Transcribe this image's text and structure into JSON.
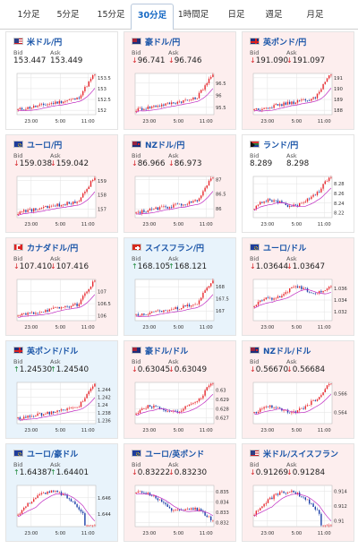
{
  "tabs": [
    {
      "label": "1分足",
      "active": false
    },
    {
      "label": "5分足",
      "active": false
    },
    {
      "label": "15分足",
      "active": false
    },
    {
      "label": "30分足",
      "active": true
    },
    {
      "label": "1時間足",
      "active": false
    },
    {
      "label": "日足",
      "active": false
    },
    {
      "label": "週足",
      "active": false
    },
    {
      "label": "月足",
      "active": false
    }
  ],
  "labels": {
    "bid": "Bid",
    "ask": "Ask"
  },
  "xticks": [
    "23:00",
    "5:00",
    "11:00"
  ],
  "colors": {
    "bull": "#e8282e",
    "bear": "#1b3fa8",
    "ma": "#c02cc2",
    "grid": "#e2e2e2",
    "down_bg": "#fdeeee",
    "up_bg": "#e8f3fb",
    "link": "#1a55a8"
  },
  "pairs": [
    {
      "name": "米ドル/円",
      "flag": "us",
      "trend": "flat",
      "arrow": "",
      "bid": "153.447",
      "ask": "153.449",
      "yticks": [
        "153.5",
        "153",
        "152.5",
        "152"
      ],
      "ylim": [
        151.8,
        153.7
      ],
      "shape": "rise"
    },
    {
      "name": "豪ドル/円",
      "flag": "au",
      "trend": "down",
      "arrow": "↓",
      "bid": "96.741",
      "ask": "96.746",
      "yticks": [
        "96.5",
        "96",
        "95.5"
      ],
      "ylim": [
        95.2,
        96.9
      ],
      "shape": "rise"
    },
    {
      "name": "英ポンド/円",
      "flag": "gb",
      "trend": "down",
      "arrow": "↓",
      "bid": "191.090",
      "ask": "191.097",
      "yticks": [
        "191",
        "190",
        "189",
        "188"
      ],
      "ylim": [
        187.6,
        191.4
      ],
      "shape": "rise"
    },
    {
      "name": "ユーロ/円",
      "flag": "eu",
      "trend": "down",
      "arrow": "↓",
      "bid": "159.038",
      "ask": "159.042",
      "yticks": [
        "159",
        "158",
        "157"
      ],
      "ylim": [
        156.4,
        159.3
      ],
      "shape": "rise"
    },
    {
      "name": "NZドル/円",
      "flag": "nz",
      "trend": "down",
      "arrow": "↓",
      "bid": "86.966",
      "ask": "86.973",
      "yticks": [
        "87",
        "86.5",
        "86"
      ],
      "ylim": [
        85.7,
        87.1
      ],
      "shape": "rise"
    },
    {
      "name": "ランド/円",
      "flag": "za",
      "trend": "flat",
      "arrow": "",
      "bid": "8.289",
      "ask": "8.298",
      "yticks": [
        "8.28",
        "8.26",
        "8.24",
        "8.22"
      ],
      "ylim": [
        8.21,
        8.295
      ],
      "shape": "mixed_rise"
    },
    {
      "name": "カナダドル/円",
      "flag": "ca",
      "trend": "down",
      "arrow": "↓",
      "bid": "107.410",
      "ask": "107.416",
      "yticks": [
        "107",
        "106.5",
        "106"
      ],
      "ylim": [
        105.8,
        107.5
      ],
      "shape": "rise"
    },
    {
      "name": "スイスフラン/円",
      "flag": "ch",
      "trend": "up",
      "arrow": "↑",
      "bid": "168.105",
      "ask": "168.121",
      "yticks": [
        "168",
        "167.5",
        "167"
      ],
      "ylim": [
        166.6,
        168.3
      ],
      "shape": "rise"
    },
    {
      "name": "ユーロ/ドル",
      "flag": "eu",
      "trend": "down",
      "arrow": "↓",
      "bid": "1.03644",
      "ask": "1.03647",
      "yticks": [
        "1.036",
        "1.034",
        "1.032"
      ],
      "ylim": [
        1.0305,
        1.0375
      ],
      "shape": "flat_up"
    },
    {
      "name": "英ポンド/ドル",
      "flag": "gb",
      "trend": "up",
      "arrow": "↑",
      "bid": "1.24530",
      "ask": "1.24540",
      "yticks": [
        "1.244",
        "1.242",
        "1.24",
        "1.238",
        "1.236"
      ],
      "ylim": [
        1.2352,
        1.2458
      ],
      "shape": "rise"
    },
    {
      "name": "豪ドル/ドル",
      "flag": "au",
      "trend": "down",
      "arrow": "↓",
      "bid": "0.63045",
      "ask": "0.63049",
      "yticks": [
        "0.63",
        "0.629",
        "0.628",
        "0.627"
      ],
      "ylim": [
        0.6264,
        0.6308
      ],
      "shape": "mixed_rise"
    },
    {
      "name": "NZドル/ドル",
      "flag": "nz",
      "trend": "down",
      "arrow": "↓",
      "bid": "0.56670",
      "ask": "0.56684",
      "yticks": [
        "0.566",
        "0.564"
      ],
      "ylim": [
        0.5628,
        0.5672
      ],
      "shape": "mixed_rise"
    },
    {
      "name": "ユーロ/豪ドル",
      "flag": "eu",
      "trend": "up",
      "arrow": "↑",
      "bid": "1.64387",
      "ask": "1.64401",
      "yticks": [
        "1.646",
        "1.644"
      ],
      "ylim": [
        1.6425,
        1.6475
      ],
      "shape": "hump"
    },
    {
      "name": "ユーロ/英ポンド",
      "flag": "eu",
      "trend": "down",
      "arrow": "↓",
      "bid": "0.83222",
      "ask": "0.83230",
      "yticks": [
        "0.835",
        "0.834",
        "0.833",
        "0.832"
      ],
      "ylim": [
        0.8316,
        0.8356
      ],
      "shape": "fall"
    },
    {
      "name": "米ドル/スイスフラン",
      "flag": "us",
      "trend": "down",
      "arrow": "↓",
      "bid": "0.91269",
      "ask": "0.91284",
      "yticks": [
        "0.914",
        "0.912",
        "0.91"
      ],
      "ylim": [
        0.9092,
        0.9148
      ],
      "shape": "hump"
    }
  ]
}
